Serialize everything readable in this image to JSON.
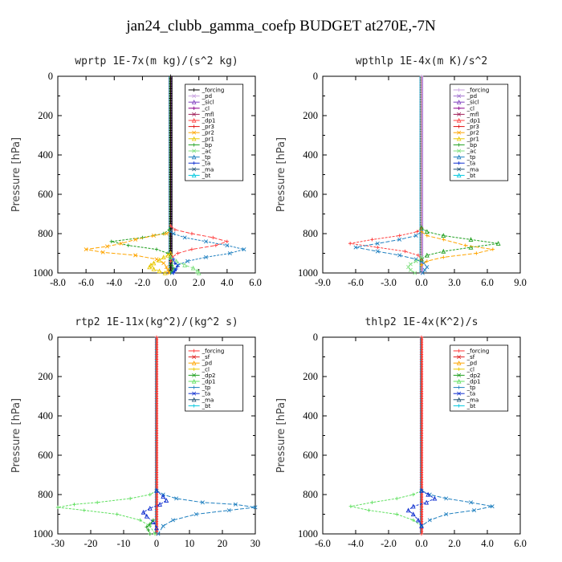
{
  "title": "jan24_clubb_gamma_coefp  BUDGET at270E,-7N",
  "chart_data": [
    {
      "type": "line",
      "title": "wprtp  1E-7x(m kg)/(s^2 kg)",
      "ylabel": "Pressure [hPa]",
      "xlim": [
        -8,
        6
      ],
      "ylim": [
        1000,
        0
      ],
      "xticks": [
        "-8.0",
        "-6.0",
        "-4.0",
        "-2.0",
        "0.0",
        "2.0",
        "4.0",
        "6.0"
      ],
      "yticks": [
        "0",
        "200",
        "400",
        "600",
        "800",
        "1000"
      ],
      "legend": [
        "_forcing",
        "_pd",
        "_sicl",
        "_cl",
        "_mfl",
        "_dp1",
        "_pr3",
        "_pr2",
        "_pr1",
        "_bp",
        "_ac",
        "_tp",
        "_ta",
        "_ma",
        "_bt"
      ],
      "colors": [
        "#000000",
        "#c8a0e0",
        "#8040c0",
        "#8b008b",
        "#a0205a",
        "#ff4040",
        "#e01010",
        "#ffa500",
        "#e8c800",
        "#20a020",
        "#80e080",
        "#2080c0",
        "#1030d0",
        "#205070",
        "#00c8e0"
      ],
      "series": [
        {
          "name": "_bp",
          "x": [
            0,
            -0.1,
            -0.5,
            -2.0,
            -4.2,
            -3.0,
            -1.0,
            -0.2,
            0,
            0.1,
            0.1,
            0.2,
            0.1,
            0
          ],
          "y": [
            760,
            780,
            800,
            820,
            840,
            860,
            880,
            900,
            920,
            940,
            960,
            975,
            990,
            1000
          ]
        },
        {
          "name": "_pr2",
          "x": [
            0,
            -0.3,
            -1.2,
            -2.5,
            -3.5,
            -4.5,
            -6.0,
            -4.8,
            -2.5,
            -1.0,
            -0.5,
            -0.3,
            -0.2,
            -0.1
          ],
          "y": [
            790,
            800,
            810,
            830,
            850,
            865,
            880,
            895,
            910,
            930,
            950,
            970,
            985,
            1000
          ]
        },
        {
          "name": "_pr1",
          "x": [
            0,
            -0.2,
            -0.5,
            -0.8,
            -1.2,
            -1.4,
            -1.5,
            -1.2,
            -0.8,
            -0.4
          ],
          "y": [
            900,
            910,
            920,
            935,
            950,
            960,
            970,
            980,
            990,
            1000
          ]
        },
        {
          "name": "_dp1",
          "x": [
            0,
            0.3,
            1.5,
            3.0,
            4.0,
            3.2,
            1.5,
            0.5,
            0.1,
            0
          ],
          "y": [
            760,
            780,
            800,
            820,
            840,
            860,
            880,
            900,
            920,
            940
          ]
        },
        {
          "name": "_tp",
          "x": [
            0,
            0.2,
            1.0,
            2.5,
            4.0,
            5.2,
            4.2,
            2.5,
            1.2,
            0.5,
            0.3,
            0.1
          ],
          "y": [
            790,
            800,
            820,
            840,
            860,
            880,
            900,
            920,
            940,
            960,
            980,
            1000
          ]
        },
        {
          "name": "_ac",
          "x": [
            0,
            0.4,
            1.0,
            1.6,
            1.9,
            2.0
          ],
          "y": [
            920,
            940,
            960,
            975,
            990,
            1000
          ]
        },
        {
          "name": "_ta",
          "x": [
            0.2,
            0.3,
            0.5,
            0.4,
            0.3,
            0.2
          ],
          "y": [
            930,
            950,
            965,
            980,
            990,
            1000
          ]
        }
      ]
    },
    {
      "type": "line",
      "title": "wpthlp  1E-4x(m K)/s^2",
      "ylabel": "Pressure [hPa]",
      "xlim": [
        -9,
        9
      ],
      "ylim": [
        1000,
        0
      ],
      "xticks": [
        "-9.0",
        "-6.0",
        "-3.0",
        "0.0",
        "3.0",
        "6.0",
        "9.0"
      ],
      "yticks": [
        "0",
        "200",
        "400",
        "600",
        "800",
        "1000"
      ],
      "legend": [
        "_forcing",
        "_pd",
        "_sicl",
        "_cl",
        "_mfl",
        "_dp1",
        "_pr3",
        "_pr2",
        "_pr1",
        "_bp",
        "_ac",
        "_tp",
        "_ta",
        "_ma",
        "_bt"
      ],
      "colors": [
        "#c8a0e0",
        "#a070d0",
        "#8040c0",
        "#8b008b",
        "#a0205a",
        "#ff4040",
        "#e01010",
        "#ffa500",
        "#e8c800",
        "#20a020",
        "#80e080",
        "#2080c0",
        "#1030d0",
        "#205070",
        "#00c8e0"
      ],
      "series": [
        {
          "name": "_dp1",
          "x": [
            0,
            -0.4,
            -2.0,
            -4.5,
            -6.5,
            -4.0,
            -1.5,
            -0.3,
            0
          ],
          "y": [
            770,
            790,
            810,
            830,
            850,
            870,
            890,
            910,
            930
          ]
        },
        {
          "name": "_tp",
          "x": [
            0,
            -0.5,
            -2.0,
            -4.0,
            -6.0,
            -4.0,
            -2.0,
            -0.5,
            0.2,
            0.5,
            0.3,
            0.1
          ],
          "y": [
            790,
            810,
            830,
            850,
            870,
            890,
            910,
            930,
            950,
            970,
            985,
            1000
          ]
        },
        {
          "name": "_bp",
          "x": [
            0,
            0.5,
            2.0,
            4.5,
            7.0,
            4.5,
            2.0,
            0.5,
            0
          ],
          "y": [
            770,
            790,
            810,
            830,
            850,
            870,
            890,
            910,
            930
          ]
        },
        {
          "name": "_pr2",
          "x": [
            0,
            0.5,
            2.0,
            4.0,
            6.5,
            5.0,
            2.0,
            0.5,
            0
          ],
          "y": [
            790,
            810,
            830,
            860,
            880,
            900,
            920,
            940,
            960
          ]
        },
        {
          "name": "_ac",
          "x": [
            0,
            -0.5,
            -1.0,
            -1.2,
            -1.0,
            -0.6
          ],
          "y": [
            920,
            940,
            955,
            970,
            985,
            1000
          ]
        }
      ]
    },
    {
      "type": "line",
      "title": "rtp2  1E-11x(kg^2)/(kg^2 s)",
      "ylabel": "Pressure [hPa]",
      "xlim": [
        -30,
        30
      ],
      "ylim": [
        1000,
        0
      ],
      "xticks": [
        "-30",
        "-20",
        "-10",
        "0",
        "10",
        "20",
        "30"
      ],
      "yticks": [
        "0",
        "200",
        "400",
        "600",
        "800",
        "1000"
      ],
      "legend": [
        "_forcing",
        "_sf",
        "_pd",
        "_cl",
        "_dp2",
        "_dp1",
        "_tp",
        "_ta",
        "_ma",
        "_bt"
      ],
      "colors": [
        "#ff3030",
        "#e02020",
        "#ffa500",
        "#e8c800",
        "#20a020",
        "#60e060",
        "#2080c0",
        "#1030d0",
        "#205070",
        "#00c8e0"
      ],
      "series": [
        {
          "name": "_dp1",
          "x": [
            0,
            -2,
            -8,
            -18,
            -25,
            -30,
            -22,
            -12,
            -5,
            -2,
            -0.5
          ],
          "y": [
            780,
            800,
            820,
            840,
            850,
            865,
            880,
            900,
            930,
            960,
            1000
          ]
        },
        {
          "name": "_tp",
          "x": [
            0,
            2,
            6,
            14,
            24,
            30,
            22,
            12,
            5,
            2,
            0.5
          ],
          "y": [
            780,
            800,
            820,
            840,
            850,
            865,
            880,
            900,
            930,
            960,
            1000
          ]
        },
        {
          "name": "_ta",
          "x": [
            0,
            2,
            3,
            1,
            -2,
            -4,
            -3,
            -1,
            0
          ],
          "y": [
            780,
            810,
            830,
            850,
            870,
            890,
            910,
            940,
            970
          ]
        },
        {
          "name": "_dp2",
          "x": [
            -1,
            -2,
            -3,
            -2.5,
            -2
          ],
          "y": [
            930,
            950,
            965,
            980,
            1000
          ]
        }
      ]
    },
    {
      "type": "line",
      "title": "thlp2  1E-4x(K^2)/s",
      "ylabel": "Pressure [hPa]",
      "xlim": [
        -6,
        6
      ],
      "ylim": [
        1000,
        0
      ],
      "xticks": [
        "-6.0",
        "-4.0",
        "-2.0",
        "0.0",
        "2.0",
        "4.0",
        "6.0"
      ],
      "yticks": [
        "0",
        "200",
        "400",
        "600",
        "800",
        "1000"
      ],
      "legend": [
        "_forcing",
        "_sf",
        "_pd",
        "_cl",
        "_dp2",
        "_dp1",
        "_tp",
        "_ta",
        "_ma",
        "_bt"
      ],
      "colors": [
        "#ff3030",
        "#e02020",
        "#ffa500",
        "#e8c800",
        "#20a020",
        "#60e060",
        "#2080c0",
        "#1030d0",
        "#205070",
        "#00c8e0"
      ],
      "series": [
        {
          "name": "_dp1",
          "x": [
            0,
            -0.5,
            -1.5,
            -3.0,
            -4.3,
            -3.2,
            -1.5,
            -0.5,
            0
          ],
          "y": [
            780,
            800,
            820,
            840,
            860,
            880,
            900,
            930,
            960
          ]
        },
        {
          "name": "_tp",
          "x": [
            0,
            0.5,
            1.5,
            3.0,
            4.3,
            3.2,
            1.5,
            0.5,
            0
          ],
          "y": [
            780,
            800,
            820,
            840,
            860,
            880,
            900,
            930,
            960
          ]
        },
        {
          "name": "_ta",
          "x": [
            0,
            0.4,
            0.8,
            0.3,
            -0.5,
            -0.8,
            -0.5,
            -0.2,
            0
          ],
          "y": [
            780,
            800,
            820,
            840,
            860,
            880,
            900,
            930,
            960
          ]
        }
      ]
    }
  ]
}
